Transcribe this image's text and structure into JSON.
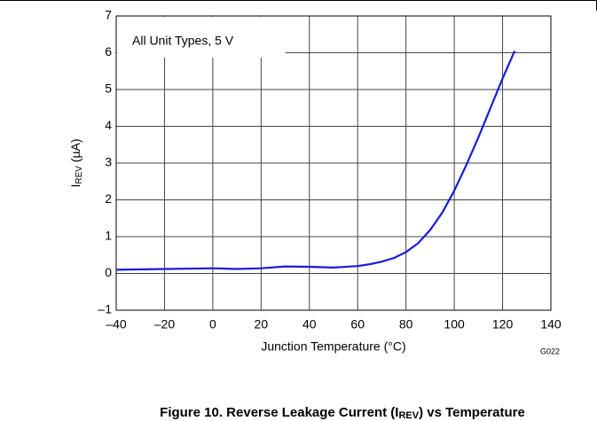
{
  "chart_data": {
    "type": "line",
    "title": {
      "before": "Figure 10. Reverse Leakage Current (I",
      "sub": "REV",
      "after": ") vs Temperature"
    },
    "xlabel": "Junction Temperature (°C)",
    "ylabel": {
      "main": "I",
      "sub": "REV",
      "after": " (µA)"
    },
    "annotation": "All Unit Types, 5 V",
    "figure_code": "G022",
    "x": [
      -40,
      -20,
      0,
      10,
      20,
      30,
      40,
      50,
      60,
      65,
      70,
      75,
      80,
      85,
      90,
      95,
      100,
      105,
      110,
      115,
      120,
      125
    ],
    "series": [
      {
        "name": "IREV",
        "color": "#1a1adc",
        "values": [
          0.1,
          0.12,
          0.14,
          0.12,
          0.14,
          0.19,
          0.18,
          0.16,
          0.2,
          0.25,
          0.32,
          0.42,
          0.58,
          0.82,
          1.18,
          1.65,
          2.25,
          2.95,
          3.7,
          4.5,
          5.3,
          6.05
        ]
      }
    ],
    "xlim": [
      -40,
      140
    ],
    "xticks": [
      {
        "value": -40,
        "label": "–40"
      },
      {
        "value": -20,
        "label": "–20"
      },
      0,
      20,
      40,
      60,
      80,
      100,
      120,
      140
    ],
    "ylim": [
      -1,
      7
    ],
    "yticks": [
      {
        "value": -1,
        "label": "–1"
      },
      0,
      1,
      2,
      3,
      4,
      5,
      6,
      7
    ],
    "grid": true
  }
}
